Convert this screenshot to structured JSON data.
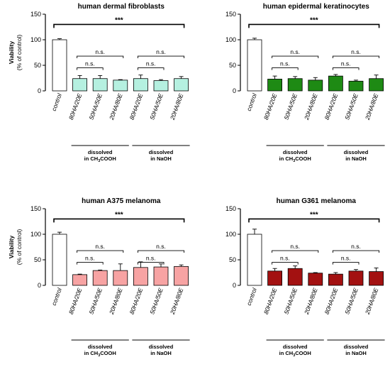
{
  "chart_data": [
    {
      "type": "bar",
      "title": "human dermal fibroblasts",
      "ylabel": "Viability",
      "ylabel_sub": "(% of control)",
      "ylim": [
        0,
        150
      ],
      "yticks": [
        0,
        50,
        100,
        150
      ],
      "categories": [
        "control",
        "80HA/20E",
        "50HA/50E",
        "20HA/80E",
        "80HA/20E",
        "50HA/50E",
        "20HA/80E"
      ],
      "values": [
        100,
        24,
        24,
        21,
        24,
        20,
        24
      ],
      "errors": [
        2,
        6,
        6,
        1,
        7,
        2,
        4
      ],
      "bar_colors": [
        "#ffffff",
        "#b5f0e0",
        "#b5f0e0",
        "#b5f0e0",
        "#b5f0e0",
        "#b5f0e0",
        "#b5f0e0"
      ],
      "brackets": [
        {
          "from": 0,
          "to": 6,
          "y": 130,
          "label": "***"
        },
        {
          "from": 1,
          "to": 3,
          "y": 68,
          "label": "n.s."
        },
        {
          "from": 1,
          "to": 2,
          "y": 45,
          "label": "n.s."
        },
        {
          "from": 4,
          "to": 6,
          "y": 68,
          "label": "n.s."
        },
        {
          "from": 4,
          "to": 5,
          "y": 45,
          "label": "n.s."
        }
      ],
      "groups": [
        {
          "from": 1,
          "to": 3,
          "line1": "dissolved",
          "line2_pre": "in CH",
          "line2_sub1": "3",
          "line2_mid": "COOH",
          "line2_sub2": ""
        },
        {
          "from": 4,
          "to": 6,
          "line1": "dissolved",
          "line2_pre": "in NaOH",
          "line2_sub1": "",
          "line2_mid": "",
          "line2_sub2": ""
        }
      ]
    },
    {
      "type": "bar",
      "title": "human epidermal keratinocytes",
      "ylabel": "",
      "ylabel_sub": "",
      "ylim": [
        0,
        150
      ],
      "yticks": [
        0,
        50,
        100,
        150
      ],
      "categories": [
        "control",
        "80HA/20E",
        "50HA/50E",
        "20HA/80E",
        "80HA/20E",
        "50HA/50E",
        "20HA/80E"
      ],
      "values": [
        100,
        23,
        24,
        21,
        29,
        19,
        24
      ],
      "errors": [
        3,
        6,
        4,
        5,
        3,
        2,
        7
      ],
      "bar_colors": [
        "#ffffff",
        "#1e8a14",
        "#1e8a14",
        "#1e8a14",
        "#1e8a14",
        "#1e8a14",
        "#1e8a14"
      ],
      "brackets": [
        {
          "from": 0,
          "to": 6,
          "y": 130,
          "label": "***"
        },
        {
          "from": 1,
          "to": 3,
          "y": 68,
          "label": "n.s."
        },
        {
          "from": 1,
          "to": 2,
          "y": 45,
          "label": "n.s."
        },
        {
          "from": 4,
          "to": 6,
          "y": 68,
          "label": "n.s."
        },
        {
          "from": 4,
          "to": 5,
          "y": 45,
          "label": "n.s."
        }
      ],
      "groups": [
        {
          "from": 1,
          "to": 3,
          "line1": "dissolved",
          "line2_pre": "in CH",
          "line2_sub1": "3",
          "line2_mid": "COOH",
          "line2_sub2": ""
        },
        {
          "from": 4,
          "to": 6,
          "line1": "dissolved",
          "line2_pre": "in NaOH",
          "line2_sub1": "",
          "line2_mid": "",
          "line2_sub2": ""
        }
      ]
    },
    {
      "type": "bar",
      "title": "human A375 melanoma",
      "ylabel": "Viability",
      "ylabel_sub": "(% of control)",
      "ylim": [
        0,
        150
      ],
      "yticks": [
        0,
        50,
        100,
        150
      ],
      "categories": [
        "control",
        "80HA/20E",
        "50HA/50E",
        "20HA/80E",
        "80HA/20E",
        "50HA/50E",
        "20HA/80E"
      ],
      "values": [
        100,
        21,
        29,
        29,
        35,
        36,
        37
      ],
      "errors": [
        4,
        1,
        1,
        13,
        11,
        6,
        3
      ],
      "bar_colors": [
        "#ffffff",
        "#f7a3a3",
        "#f7a3a3",
        "#f7a3a3",
        "#f7a3a3",
        "#f7a3a3",
        "#f7a3a3"
      ],
      "brackets": [
        {
          "from": 0,
          "to": 6,
          "y": 130,
          "label": "***"
        },
        {
          "from": 1,
          "to": 3,
          "y": 68,
          "label": "n.s."
        },
        {
          "from": 1,
          "to": 2,
          "y": 45,
          "label": "n.s."
        },
        {
          "from": 4,
          "to": 6,
          "y": 68,
          "label": "n.s."
        },
        {
          "from": 4,
          "to": 5,
          "y": 45,
          "label": "n.s."
        }
      ],
      "groups": [
        {
          "from": 1,
          "to": 3,
          "line1": "dissolved",
          "line2_pre": "in CH",
          "line2_sub1": "3",
          "line2_mid": "COOH",
          "line2_sub2": ""
        },
        {
          "from": 4,
          "to": 6,
          "line1": "dissolved",
          "line2_pre": "in NaOH",
          "line2_sub1": "",
          "line2_mid": "",
          "line2_sub2": ""
        }
      ]
    },
    {
      "type": "bar",
      "title": "human G361 melanoma",
      "ylabel": "",
      "ylabel_sub": "",
      "ylim": [
        0,
        150
      ],
      "yticks": [
        0,
        50,
        100,
        150
      ],
      "categories": [
        "control",
        "80HA/20E",
        "50HA/50E",
        "20HA/80E",
        "80HA/20E",
        "50HA/50E",
        "20HA/80E"
      ],
      "values": [
        100,
        28,
        33,
        24,
        22,
        28,
        27
      ],
      "errors": [
        10,
        5,
        5,
        1,
        3,
        3,
        7
      ],
      "bar_colors": [
        "#ffffff",
        "#a31111",
        "#a31111",
        "#a31111",
        "#a31111",
        "#a31111",
        "#a31111"
      ],
      "brackets": [
        {
          "from": 0,
          "to": 6,
          "y": 130,
          "label": "***"
        },
        {
          "from": 1,
          "to": 3,
          "y": 68,
          "label": "n.s."
        },
        {
          "from": 1,
          "to": 2,
          "y": 45,
          "label": "n.s."
        },
        {
          "from": 4,
          "to": 6,
          "y": 68,
          "label": "n.s."
        },
        {
          "from": 4,
          "to": 5,
          "y": 45,
          "label": "n.s."
        }
      ],
      "groups": [
        {
          "from": 1,
          "to": 3,
          "line1": "dissolved",
          "line2_pre": "in CH",
          "line2_sub1": "3",
          "line2_mid": "COOH",
          "line2_sub2": ""
        },
        {
          "from": 4,
          "to": 6,
          "line1": "dissolved",
          "line2_pre": "in NaOH",
          "line2_sub1": "",
          "line2_mid": "",
          "line2_sub2": ""
        }
      ]
    }
  ]
}
